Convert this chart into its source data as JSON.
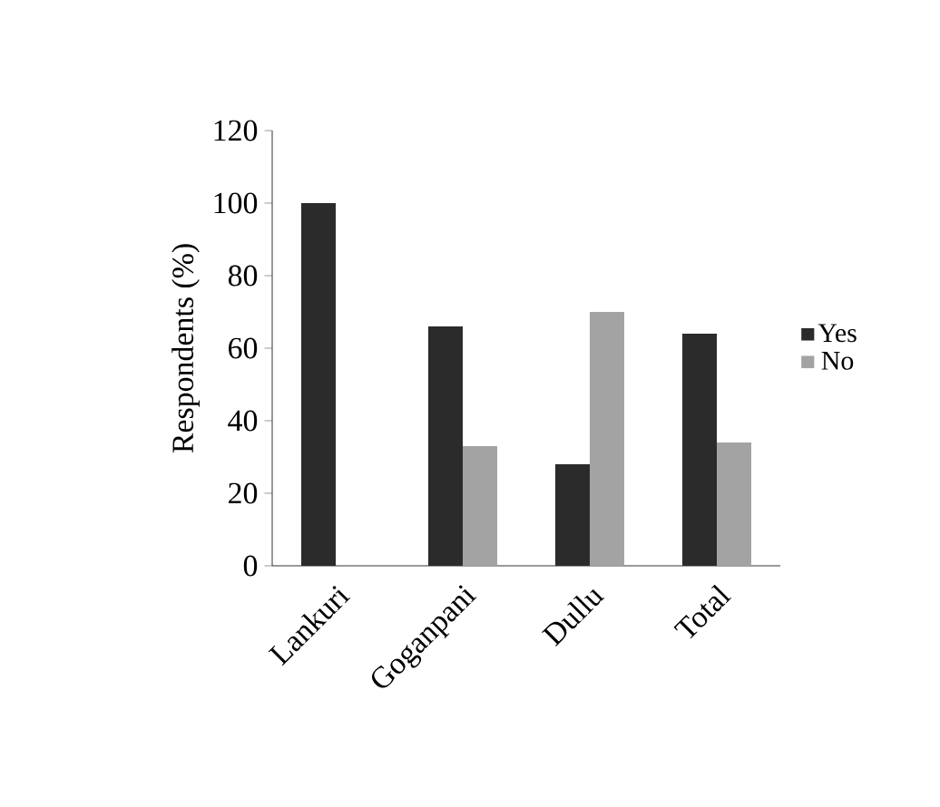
{
  "chart_data": {
    "type": "bar",
    "ylabel": "Respondents (%)",
    "categories": [
      "Lankuri",
      "Goganpani",
      "Dullu",
      "Total"
    ],
    "series": [
      {
        "name": "Yes",
        "color": "#2b2b2b",
        "values": [
          100,
          66,
          28,
          64
        ]
      },
      {
        "name": "No",
        "color": "#a3a3a3",
        "values": [
          0,
          33,
          70,
          34
        ]
      }
    ],
    "ylim": [
      0,
      120
    ],
    "yticks": [
      0,
      20,
      40,
      60,
      80,
      100,
      120
    ],
    "grid": false,
    "legend": "right"
  }
}
